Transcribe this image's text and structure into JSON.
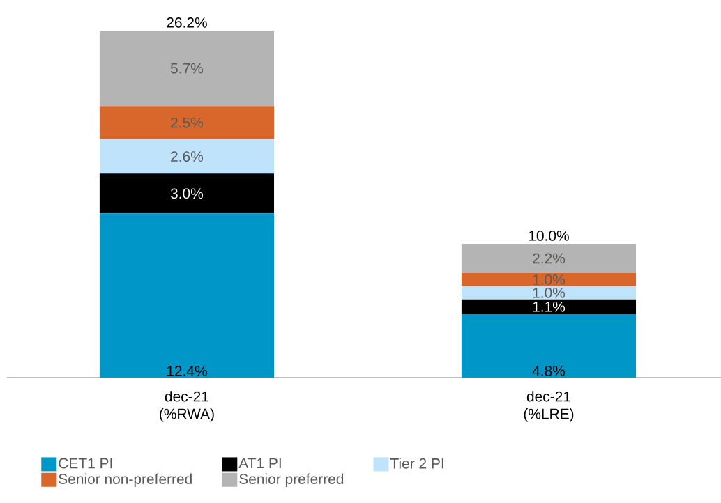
{
  "chart_data": {
    "type": "bar",
    "stacked": true,
    "categories": [
      "dec-21 (%RWA)",
      "dec-21 (%LRE)"
    ],
    "series": [
      {
        "name": "CET1 PI",
        "color": "#0096c8",
        "values": [
          12.4,
          4.8
        ],
        "value_labels": [
          "12.4%",
          "4.8%"
        ]
      },
      {
        "name": "AT1 PI",
        "color": "#000000",
        "values": [
          3.0,
          1.1
        ],
        "value_labels": [
          "3.0%",
          "1.1%"
        ]
      },
      {
        "name": "Tier 2 PI",
        "color": "#bfe3fb",
        "values": [
          2.6,
          1.0
        ],
        "value_labels": [
          "2.6%",
          "1.0%"
        ]
      },
      {
        "name": "Senior non-preferred",
        "color": "#d9672b",
        "values": [
          2.5,
          1.0
        ],
        "value_labels": [
          "2.5%",
          "1.0%"
        ]
      },
      {
        "name": "Senior preferred",
        "color": "#b4b4b4",
        "values": [
          5.7,
          2.2
        ],
        "value_labels": [
          "5.7%",
          "2.2%"
        ]
      }
    ],
    "totals": [
      "26.2%",
      "10.0%"
    ],
    "legend": "bottom"
  }
}
